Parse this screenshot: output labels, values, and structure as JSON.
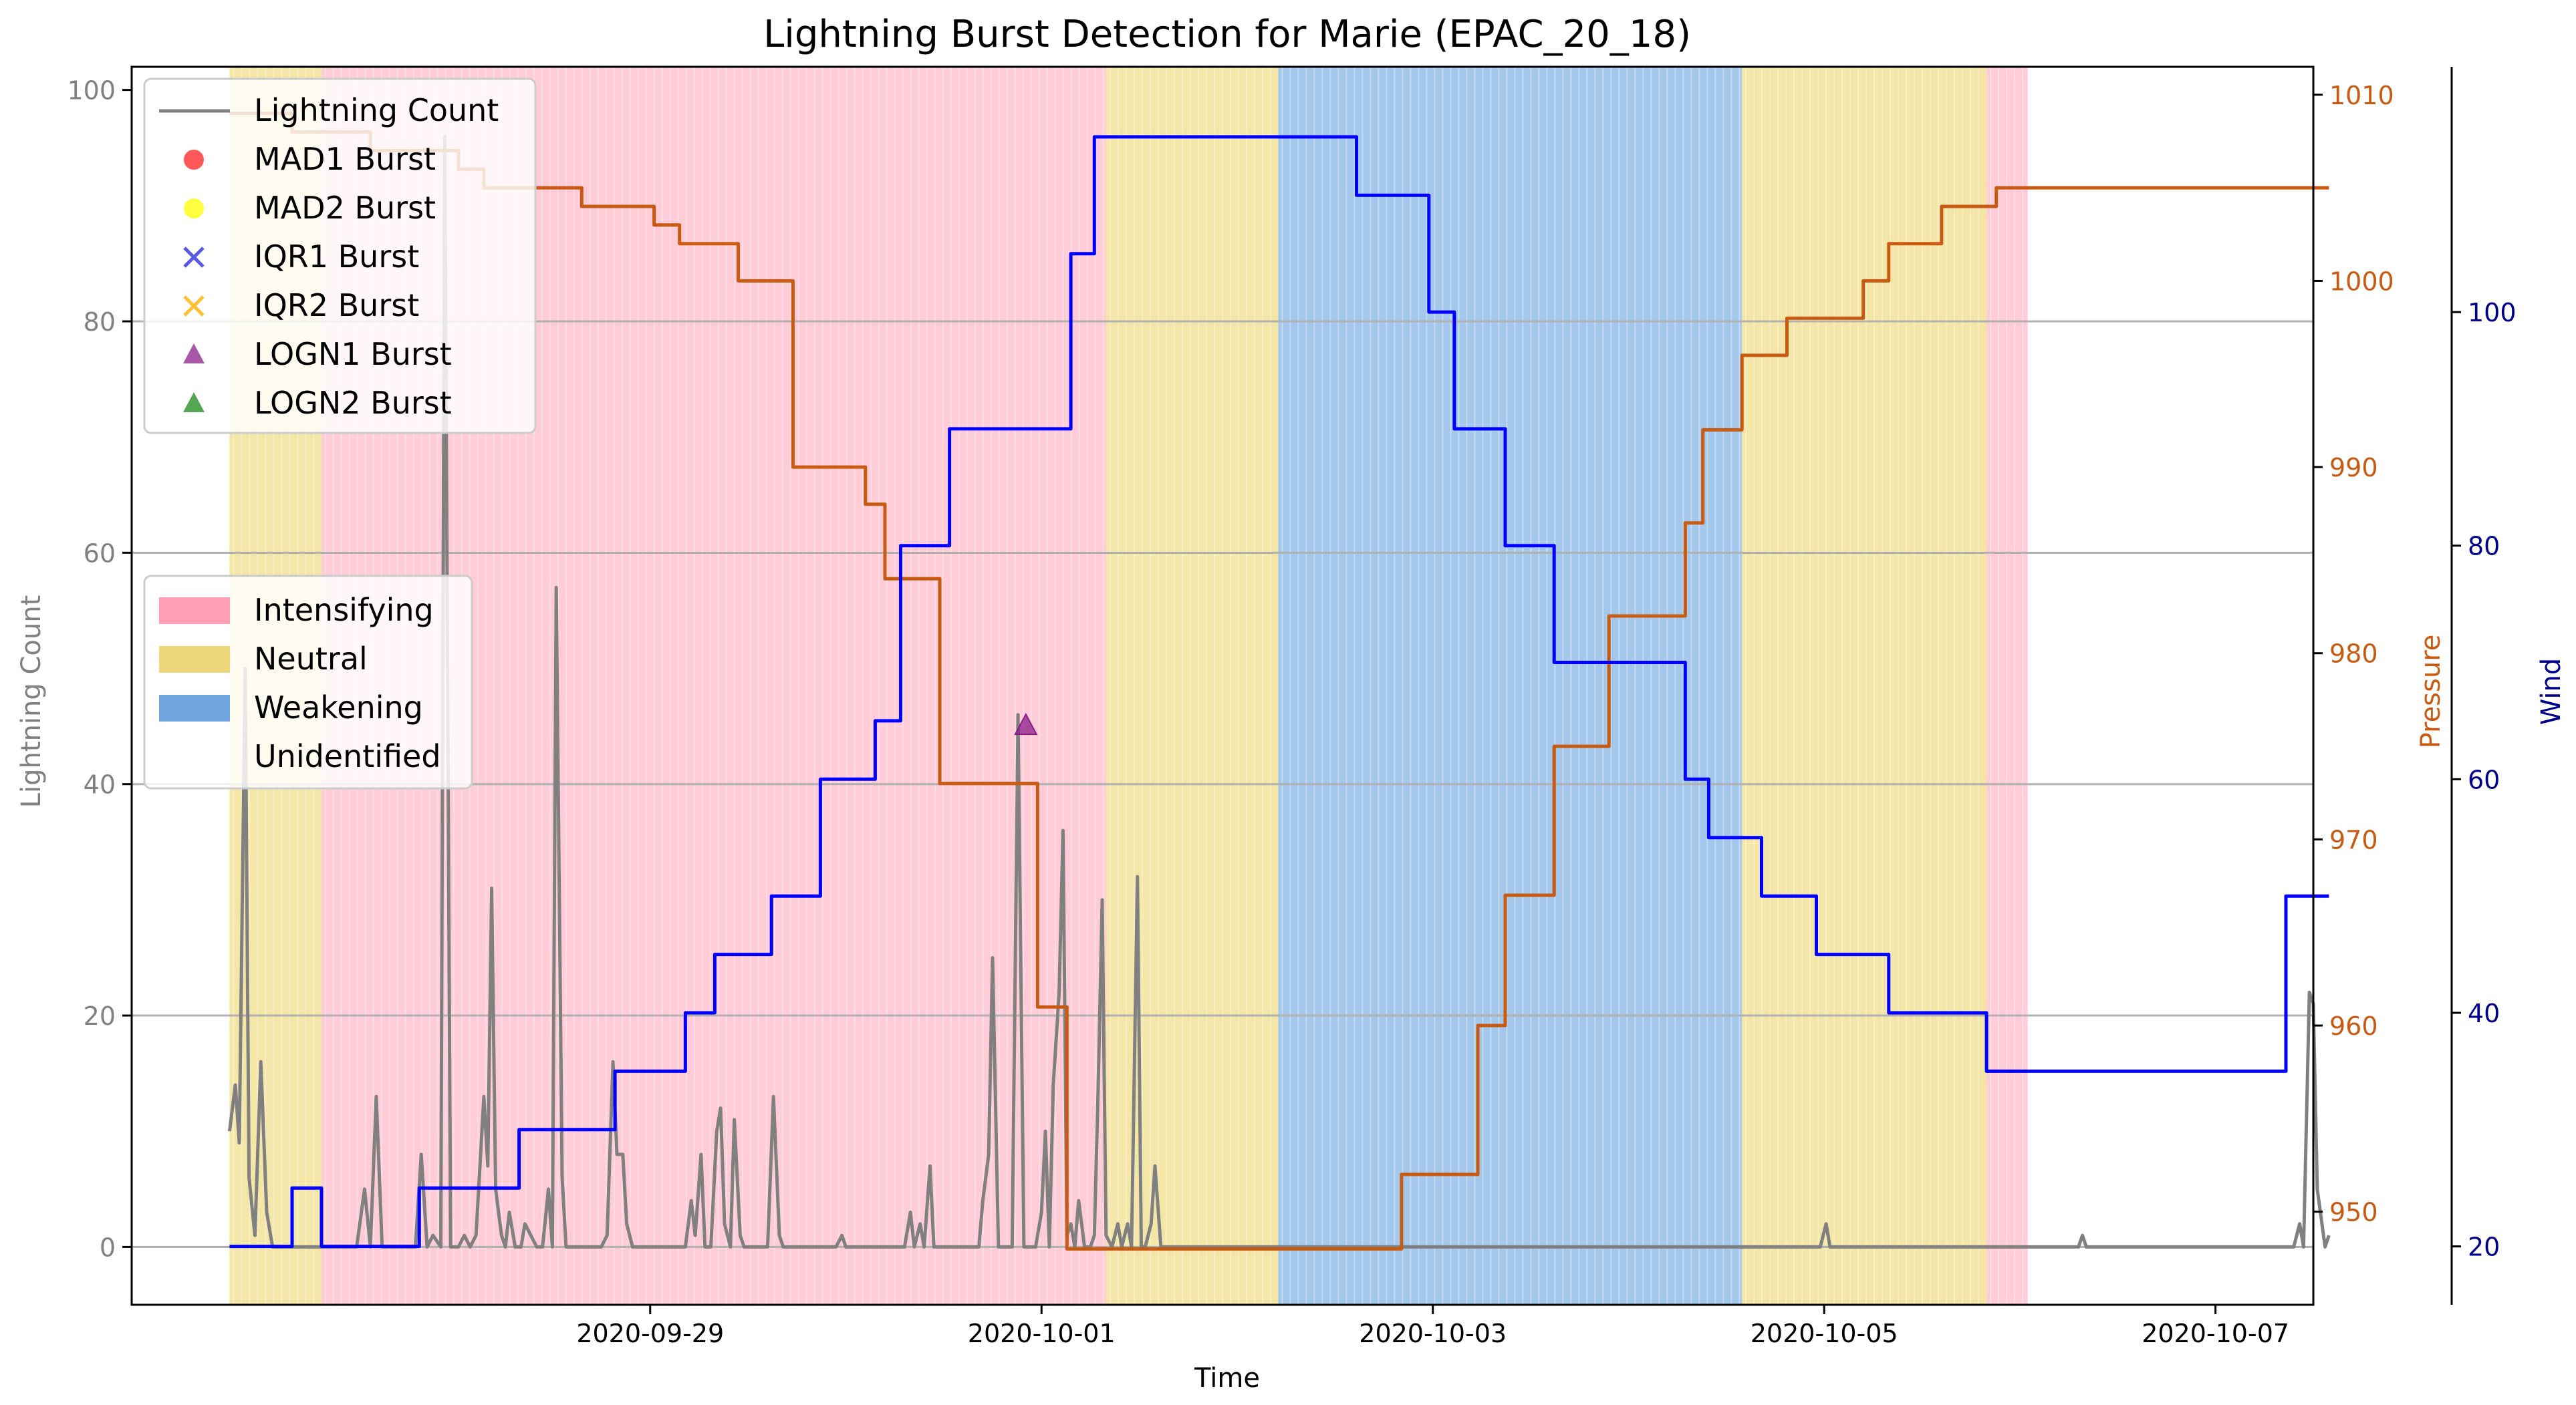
{
  "chart_data": {
    "type": "line",
    "title": "Lightning Burst Detection for Marie (EPAC_20_18)",
    "xlabel": "Time",
    "x_ticks": [
      "2020-09-29",
      "2020-10-01",
      "2020-10-03",
      "2020-10-05",
      "2020-10-07"
    ],
    "x_range_days": [
      -1.65,
      9.5
    ],
    "x_origin_date": "2020-09-28",
    "grid": "horizontal",
    "axes": [
      {
        "id": "lightning",
        "label": "Lightning Count",
        "side": "left",
        "color": "#808080",
        "ylim": [
          -5,
          102
        ],
        "ticks": [
          0,
          20,
          40,
          60,
          80,
          100
        ]
      },
      {
        "id": "pressure",
        "label": "Pressure",
        "side": "right",
        "color": "#c85a11",
        "ylim": [
          945,
          1011.5
        ],
        "ticks": [
          950,
          960,
          970,
          980,
          990,
          1000,
          1010
        ]
      },
      {
        "id": "wind",
        "label": "Wind",
        "side": "right-outer",
        "color": "#00008b",
        "ylim": [
          15,
          121
        ],
        "ticks": [
          20,
          40,
          60,
          80,
          100
        ]
      }
    ],
    "phase_bands": [
      {
        "phase": "Neutral",
        "start": -1.15,
        "end": -0.68
      },
      {
        "phase": "Intensifying",
        "start": -0.68,
        "end": 3.33
      },
      {
        "phase": "Neutral",
        "start": 3.33,
        "end": 4.21
      },
      {
        "phase": "Weakening",
        "start": 4.21,
        "end": 6.58
      },
      {
        "phase": "Neutral",
        "start": 6.58,
        "end": 7.83
      },
      {
        "phase": "Intensifying",
        "start": 7.83,
        "end": 8.04
      }
    ],
    "phase_colors": {
      "Intensifying": "#ffb6c8",
      "Neutral": "#f0dc82",
      "Weakening": "#7eb0e3"
    },
    "series": [
      {
        "name": "Lightning Count",
        "axis": "lightning",
        "color": "#808080",
        "kind": "line",
        "points": [
          [
            -1.15,
            10
          ],
          [
            -1.12,
            14
          ],
          [
            -1.1,
            9
          ],
          [
            -1.07,
            50
          ],
          [
            -1.05,
            6
          ],
          [
            -1.02,
            1
          ],
          [
            -0.99,
            16
          ],
          [
            -0.96,
            3
          ],
          [
            -0.93,
            0
          ],
          [
            -0.5,
            0
          ],
          [
            -0.46,
            5
          ],
          [
            -0.43,
            0
          ],
          [
            -0.4,
            13
          ],
          [
            -0.37,
            0
          ],
          [
            -0.2,
            0
          ],
          [
            -0.17,
            8
          ],
          [
            -0.14,
            0
          ],
          [
            -0.11,
            1
          ],
          [
            -0.07,
            0
          ],
          [
            -0.05,
            96
          ],
          [
            -0.02,
            0
          ],
          [
            0.02,
            0
          ],
          [
            0.05,
            1
          ],
          [
            0.08,
            0
          ],
          [
            0.11,
            1
          ],
          [
            0.15,
            13
          ],
          [
            0.17,
            7
          ],
          [
            0.19,
            31
          ],
          [
            0.21,
            5
          ],
          [
            0.24,
            1
          ],
          [
            0.26,
            0
          ],
          [
            0.28,
            3
          ],
          [
            0.31,
            0
          ],
          [
            0.34,
            0
          ],
          [
            0.36,
            2
          ],
          [
            0.39,
            1
          ],
          [
            0.42,
            0
          ],
          [
            0.45,
            0
          ],
          [
            0.48,
            5
          ],
          [
            0.5,
            0
          ],
          [
            0.52,
            57
          ],
          [
            0.55,
            6
          ],
          [
            0.57,
            0
          ],
          [
            0.75,
            0
          ],
          [
            0.78,
            1
          ],
          [
            0.81,
            16
          ],
          [
            0.83,
            8
          ],
          [
            0.86,
            8
          ],
          [
            0.88,
            2
          ],
          [
            0.91,
            0
          ],
          [
            1.18,
            0
          ],
          [
            1.21,
            4
          ],
          [
            1.23,
            1
          ],
          [
            1.26,
            8
          ],
          [
            1.28,
            0
          ],
          [
            1.31,
            0
          ],
          [
            1.34,
            10
          ],
          [
            1.36,
            12
          ],
          [
            1.38,
            2
          ],
          [
            1.41,
            0
          ],
          [
            1.43,
            11
          ],
          [
            1.46,
            1
          ],
          [
            1.48,
            0
          ],
          [
            1.6,
            0
          ],
          [
            1.63,
            13
          ],
          [
            1.66,
            1
          ],
          [
            1.68,
            0
          ],
          [
            1.95,
            0
          ],
          [
            1.98,
            1
          ],
          [
            2.0,
            0
          ],
          [
            2.3,
            0
          ],
          [
            2.33,
            3
          ],
          [
            2.35,
            0
          ],
          [
            2.38,
            2
          ],
          [
            2.4,
            0
          ],
          [
            2.43,
            7
          ],
          [
            2.45,
            0
          ],
          [
            2.68,
            0
          ],
          [
            2.7,
            4
          ],
          [
            2.73,
            8
          ],
          [
            2.75,
            25
          ],
          [
            2.78,
            0
          ],
          [
            2.85,
            0
          ],
          [
            2.88,
            46
          ],
          [
            2.91,
            0
          ],
          [
            2.97,
            0
          ],
          [
            3.0,
            3
          ],
          [
            3.02,
            10
          ],
          [
            3.04,
            0
          ],
          [
            3.06,
            14
          ],
          [
            3.09,
            22
          ],
          [
            3.11,
            36
          ],
          [
            3.13,
            1
          ],
          [
            3.15,
            2
          ],
          [
            3.17,
            0
          ],
          [
            3.19,
            4
          ],
          [
            3.22,
            0
          ],
          [
            3.25,
            0
          ],
          [
            3.27,
            1
          ],
          [
            3.29,
            14
          ],
          [
            3.31,
            30
          ],
          [
            3.33,
            1
          ],
          [
            3.36,
            0
          ],
          [
            3.39,
            2
          ],
          [
            3.41,
            0
          ],
          [
            3.44,
            2
          ],
          [
            3.46,
            0
          ],
          [
            3.49,
            32
          ],
          [
            3.51,
            0
          ],
          [
            3.53,
            0
          ],
          [
            3.56,
            2
          ],
          [
            3.58,
            7
          ],
          [
            3.61,
            0
          ],
          [
            6.98,
            0
          ],
          [
            7.01,
            2
          ],
          [
            7.03,
            0
          ],
          [
            8.3,
            0
          ],
          [
            8.32,
            1
          ],
          [
            8.34,
            0
          ],
          [
            9.4,
            0
          ],
          [
            9.43,
            2
          ],
          [
            9.45,
            0
          ],
          [
            9.48,
            22
          ],
          [
            9.5,
            21
          ],
          [
            9.52,
            5
          ],
          [
            9.56,
            0
          ],
          [
            9.58,
            1
          ]
        ]
      },
      {
        "name": "Pressure",
        "axis": "pressure",
        "color": "#c85a11",
        "kind": "step",
        "points": [
          [
            -1.15,
            1009
          ],
          [
            -0.83,
            1009
          ],
          [
            -0.83,
            1008
          ],
          [
            -0.43,
            1008
          ],
          [
            -0.43,
            1007
          ],
          [
            0.02,
            1007
          ],
          [
            0.02,
            1006
          ],
          [
            0.15,
            1006
          ],
          [
            0.15,
            1005
          ],
          [
            0.65,
            1005
          ],
          [
            0.65,
            1004
          ],
          [
            1.02,
            1004
          ],
          [
            1.02,
            1003
          ],
          [
            1.15,
            1003
          ],
          [
            1.15,
            1002
          ],
          [
            1.45,
            1002
          ],
          [
            1.45,
            1000
          ],
          [
            1.73,
            1000
          ],
          [
            1.73,
            990
          ],
          [
            2.1,
            990
          ],
          [
            2.1,
            988
          ],
          [
            2.2,
            988
          ],
          [
            2.2,
            984
          ],
          [
            2.48,
            984
          ],
          [
            2.48,
            973
          ],
          [
            2.98,
            973
          ],
          [
            2.98,
            961
          ],
          [
            3.13,
            961
          ],
          [
            3.13,
            948
          ],
          [
            4.21,
            948
          ],
          [
            4.84,
            948
          ],
          [
            4.84,
            952
          ],
          [
            5.23,
            952
          ],
          [
            5.23,
            960
          ],
          [
            5.37,
            960
          ],
          [
            5.37,
            967
          ],
          [
            5.62,
            967
          ],
          [
            5.62,
            975
          ],
          [
            5.9,
            975
          ],
          [
            5.9,
            982
          ],
          [
            6.29,
            982
          ],
          [
            6.29,
            987
          ],
          [
            6.38,
            987
          ],
          [
            6.38,
            992
          ],
          [
            6.58,
            992
          ],
          [
            6.58,
            996
          ],
          [
            6.81,
            996
          ],
          [
            6.81,
            998
          ],
          [
            7.2,
            998
          ],
          [
            7.2,
            1000
          ],
          [
            7.33,
            1000
          ],
          [
            7.33,
            1002
          ],
          [
            7.6,
            1002
          ],
          [
            7.6,
            1004
          ],
          [
            7.88,
            1004
          ],
          [
            7.88,
            1005
          ],
          [
            9.58,
            1005
          ]
        ]
      },
      {
        "name": "Wind",
        "axis": "wind",
        "color": "#0000ff",
        "kind": "step",
        "points": [
          [
            -1.15,
            20
          ],
          [
            -0.83,
            20
          ],
          [
            -0.83,
            25
          ],
          [
            -0.68,
            25
          ],
          [
            -0.68,
            20
          ],
          [
            -0.18,
            20
          ],
          [
            -0.18,
            25
          ],
          [
            0.33,
            25
          ],
          [
            0.33,
            30
          ],
          [
            0.82,
            30
          ],
          [
            0.82,
            35
          ],
          [
            1.18,
            35
          ],
          [
            1.18,
            40
          ],
          [
            1.33,
            40
          ],
          [
            1.33,
            45
          ],
          [
            1.62,
            45
          ],
          [
            1.62,
            50
          ],
          [
            1.87,
            50
          ],
          [
            1.87,
            60
          ],
          [
            2.15,
            60
          ],
          [
            2.15,
            65
          ],
          [
            2.28,
            65
          ],
          [
            2.28,
            80
          ],
          [
            2.53,
            80
          ],
          [
            2.53,
            90
          ],
          [
            3.15,
            90
          ],
          [
            3.15,
            105
          ],
          [
            3.27,
            105
          ],
          [
            3.27,
            115
          ],
          [
            4.21,
            115
          ],
          [
            4.61,
            115
          ],
          [
            4.61,
            110
          ],
          [
            4.98,
            110
          ],
          [
            4.98,
            100
          ],
          [
            5.11,
            100
          ],
          [
            5.11,
            90
          ],
          [
            5.37,
            90
          ],
          [
            5.37,
            80
          ],
          [
            5.62,
            80
          ],
          [
            5.62,
            70
          ],
          [
            6.29,
            70
          ],
          [
            6.29,
            60
          ],
          [
            6.41,
            60
          ],
          [
            6.41,
            55
          ],
          [
            6.68,
            55
          ],
          [
            6.68,
            50
          ],
          [
            6.96,
            50
          ],
          [
            6.96,
            45
          ],
          [
            7.33,
            45
          ],
          [
            7.33,
            40
          ],
          [
            7.83,
            40
          ],
          [
            7.83,
            35
          ],
          [
            9.36,
            35
          ],
          [
            9.36,
            50
          ],
          [
            9.58,
            50
          ]
        ]
      }
    ],
    "bursts": [
      {
        "name": "LOGN1 Burst",
        "x": 2.92,
        "y": 45,
        "marker": "triangle",
        "color": "#8b1e8b"
      }
    ],
    "legend_markers": {
      "position": "top-left",
      "entries": [
        {
          "label": "Lightning Count",
          "kind": "line",
          "color": "#808080"
        },
        {
          "label": "MAD1 Burst",
          "kind": "circle",
          "color": "#ff2020"
        },
        {
          "label": "MAD2 Burst",
          "kind": "circle",
          "color": "#ffff00"
        },
        {
          "label": "IQR1 Burst",
          "kind": "x",
          "color": "#3030e0"
        },
        {
          "label": "IQR2 Burst",
          "kind": "x",
          "color": "#ffb000"
        },
        {
          "label": "LOGN1 Burst",
          "kind": "triangle",
          "color": "#8b1e8b"
        },
        {
          "label": "LOGN2 Burst",
          "kind": "triangle",
          "color": "#1a8a1a"
        }
      ]
    },
    "legend_phases": {
      "position": "center-left",
      "entries": [
        {
          "label": "Intensifying",
          "color": "#ff9fb4"
        },
        {
          "label": "Neutral",
          "color": "#ecd67a"
        },
        {
          "label": "Weakening",
          "color": "#6fa5de"
        },
        {
          "label": "Unidentified",
          "color": "#ffffff"
        }
      ]
    }
  }
}
